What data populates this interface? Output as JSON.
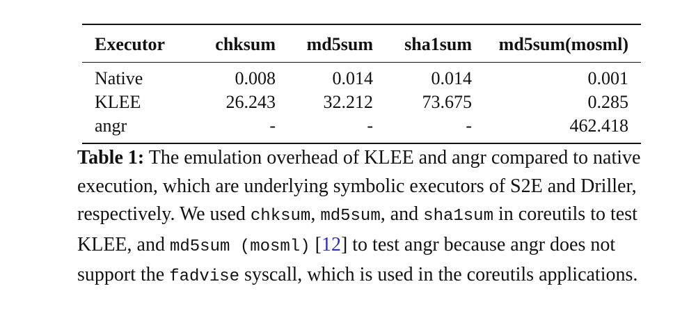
{
  "table": {
    "headers": [
      "Executor",
      "chksum",
      "md5sum",
      "sha1sum",
      "md5sum(mosml)"
    ],
    "rows": [
      [
        "Native",
        "0.008",
        "0.014",
        "0.014",
        "0.001"
      ],
      [
        "KLEE",
        "26.243",
        "32.212",
        "73.675",
        "0.285"
      ],
      [
        "angr",
        "-",
        "-",
        "-",
        "462.418"
      ]
    ]
  },
  "caption": {
    "label": "Table 1:",
    "t1": " The emulation overhead of KLEE and angr compared to native execution, which are underlying symbolic executors of S2E and Driller, respectively. We used ",
    "code1": "chksum",
    "t2": ", ",
    "code2": "md5sum",
    "t3": ", and ",
    "code3": "sha1sum",
    "t4": " in coreutils to test KLEE, and ",
    "code4": "md5sum (mosml)",
    "t5": " [",
    "cite": "12",
    "t6": "] to test angr because angr does not support the ",
    "code5": "fadvise",
    "t7": " syscall, which is used in the coreutils applications."
  }
}
